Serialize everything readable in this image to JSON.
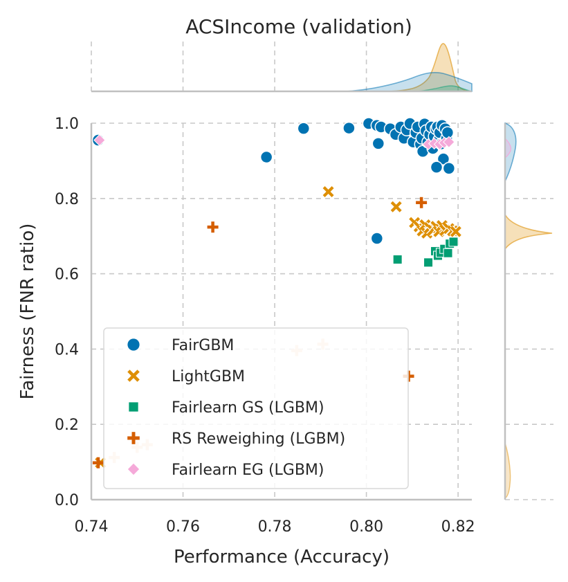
{
  "chart_data": {
    "type": "scatter",
    "title": "ACSIncome (validation)",
    "xlabel": "Performance (Accuracy)",
    "ylabel": "Fairness (FNR ratio)",
    "xlim": [
      0.74,
      0.823
    ],
    "ylim": [
      0.0,
      1.0
    ],
    "xticks": [
      0.74,
      0.76,
      0.78,
      0.8,
      0.82
    ],
    "xtick_labels": [
      "0.74",
      "0.76",
      "0.78",
      "0.80",
      "0.82"
    ],
    "yticks": [
      0.0,
      0.2,
      0.4,
      0.6,
      0.8,
      1.0
    ],
    "ytick_labels": [
      "0.0",
      "0.2",
      "0.4",
      "0.6",
      "0.8",
      "1.0"
    ],
    "grid": true,
    "legend_position": "lower-left",
    "marginal_distributions": true,
    "series": [
      {
        "name": "FairGBM",
        "marker": "circle",
        "color": "#0173b2",
        "points": [
          [
            0.7415,
            0.955
          ],
          [
            0.7782,
            0.91
          ],
          [
            0.7863,
            0.986
          ],
          [
            0.7962,
            0.987
          ],
          [
            0.8005,
            0.999
          ],
          [
            0.8023,
            0.994
          ],
          [
            0.8026,
            0.946
          ],
          [
            0.8032,
            0.99
          ],
          [
            0.8052,
            0.985
          ],
          [
            0.8064,
            0.97
          ],
          [
            0.8075,
            0.99
          ],
          [
            0.8082,
            0.96
          ],
          [
            0.8088,
            0.982
          ],
          [
            0.8095,
            0.999
          ],
          [
            0.8102,
            0.95
          ],
          [
            0.8108,
            0.975
          ],
          [
            0.8112,
            0.99
          ],
          [
            0.8118,
            0.944
          ],
          [
            0.8121,
            0.96
          ],
          [
            0.8123,
            0.925
          ],
          [
            0.8127,
            0.998
          ],
          [
            0.813,
            0.98
          ],
          [
            0.8134,
            0.95
          ],
          [
            0.8138,
            0.97
          ],
          [
            0.8142,
            0.99
          ],
          [
            0.8145,
            0.933
          ],
          [
            0.8148,
            0.965
          ],
          [
            0.8152,
            0.985
          ],
          [
            0.8155,
            0.99
          ],
          [
            0.8158,
            0.955
          ],
          [
            0.816,
            0.975
          ],
          [
            0.8163,
            0.945
          ],
          [
            0.8165,
            0.994
          ],
          [
            0.8168,
            0.905
          ],
          [
            0.8172,
            0.985
          ],
          [
            0.8175,
            0.96
          ],
          [
            0.8177,
            0.975
          ],
          [
            0.818,
            0.88
          ],
          [
            0.8153,
            0.883
          ],
          [
            0.8023,
            0.694
          ]
        ]
      },
      {
        "name": "LightGBM",
        "marker": "x",
        "color": "#de8f05",
        "points": [
          [
            0.7917,
            0.818
          ],
          [
            0.8065,
            0.778
          ],
          [
            0.8105,
            0.736
          ],
          [
            0.8115,
            0.725
          ],
          [
            0.8122,
            0.714
          ],
          [
            0.8128,
            0.73
          ],
          [
            0.8132,
            0.708
          ],
          [
            0.8138,
            0.722
          ],
          [
            0.8145,
            0.716
          ],
          [
            0.8152,
            0.726
          ],
          [
            0.8158,
            0.712
          ],
          [
            0.8165,
            0.728
          ],
          [
            0.8172,
            0.716
          ],
          [
            0.818,
            0.72
          ],
          [
            0.8188,
            0.714
          ],
          [
            0.8195,
            0.712
          ],
          [
            0.749,
            0.328
          ],
          [
            0.742,
            0.098
          ]
        ]
      },
      {
        "name": "Fairlearn GS (LGBM)",
        "marker": "square",
        "color": "#029e73",
        "points": [
          [
            0.8068,
            0.638
          ],
          [
            0.8135,
            0.63
          ],
          [
            0.815,
            0.66
          ],
          [
            0.8156,
            0.648
          ],
          [
            0.8162,
            0.656
          ],
          [
            0.817,
            0.666
          ],
          [
            0.8178,
            0.655
          ],
          [
            0.8182,
            0.68
          ],
          [
            0.819,
            0.685
          ]
        ]
      },
      {
        "name": "RS Reweighing (LGBM)",
        "marker": "plus",
        "color": "#d55e00",
        "points": [
          [
            0.7665,
            0.724
          ],
          [
            0.812,
            0.789
          ],
          [
            0.7415,
            0.098
          ],
          [
            0.8092,
            0.328
          ]
        ]
      },
      {
        "name": "Fairlearn EG (LGBM)",
        "marker": "diamond",
        "color": "#f5a9d9",
        "points": [
          [
            0.7418,
            0.955
          ],
          [
            0.8135,
            0.944
          ],
          [
            0.8148,
            0.946
          ],
          [
            0.816,
            0.944
          ],
          [
            0.817,
            0.948
          ],
          [
            0.818,
            0.95
          ]
        ]
      },
      {
        "name": "",
        "marker": "plus",
        "color": "#f8d9bc",
        "points": [
          [
            0.745,
            0.112
          ],
          [
            0.75,
            0.139
          ],
          [
            0.7522,
            0.146
          ],
          [
            0.7848,
            0.396
          ],
          [
            0.7905,
            0.413
          ]
        ]
      }
    ]
  }
}
